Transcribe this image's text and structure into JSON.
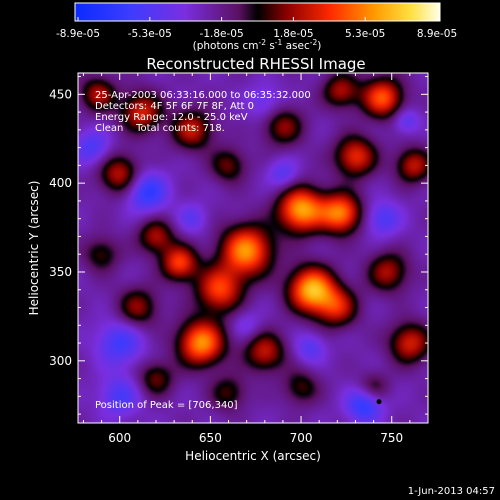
{
  "chart_data": {
    "type": "heatmap",
    "title": "Reconstructed RHESSI Image",
    "xlabel": "Heliocentric X (arcsec)",
    "ylabel": "Heliocentric Y (arcsec)",
    "xlim": [
      577,
      770
    ],
    "ylim": [
      265,
      462
    ],
    "x_ticks": [
      600,
      650,
      700,
      750
    ],
    "y_ticks": [
      300,
      350,
      400,
      450
    ],
    "colorbar": {
      "ticks": [
        "-8.9e-05",
        "-5.3e-05",
        "-1.8e-05",
        "1.8e-05",
        "5.3e-05",
        "8.9e-05"
      ],
      "range": [
        -8.9e-05,
        8.9e-05
      ],
      "unit_label": "(photons cm",
      "unit_exp1": "-2",
      "unit_mid": " s",
      "unit_exp2": "-1",
      "unit_mid2": " asec",
      "unit_exp3": "-2",
      "unit_end": ")"
    },
    "annotations": [
      "25-Apr-2003 06:33:16.000 to 06:35:32.000",
      "Detectors: 4F 5F 6F 7F 8F, Att 0",
      "Energy Range: 12.0 - 25.0 keV",
      "Clean    Total counts: 718."
    ],
    "peak_text": "Position of Peak = [706,340]",
    "peak": [
      706,
      340
    ],
    "date_stamp": "1-Jun-2013 04:57",
    "blobs": [
      {
        "x": 706,
        "y": 340,
        "amp": 1.0,
        "s": 9
      },
      {
        "x": 700,
        "y": 385,
        "amp": 0.95,
        "s": 9
      },
      {
        "x": 722,
        "y": 383,
        "amp": 0.85,
        "s": 8
      },
      {
        "x": 670,
        "y": 362,
        "amp": 0.9,
        "s": 10
      },
      {
        "x": 645,
        "y": 310,
        "amp": 0.9,
        "s": 9
      },
      {
        "x": 720,
        "y": 330,
        "amp": 0.55,
        "s": 8
      },
      {
        "x": 655,
        "y": 340,
        "amp": 0.7,
        "s": 9
      },
      {
        "x": 680,
        "y": 305,
        "amp": 0.55,
        "s": 8
      },
      {
        "x": 633,
        "y": 355,
        "amp": 0.7,
        "s": 7
      },
      {
        "x": 610,
        "y": 330,
        "amp": 0.45,
        "s": 8
      },
      {
        "x": 760,
        "y": 310,
        "amp": 0.6,
        "s": 8
      },
      {
        "x": 748,
        "y": 350,
        "amp": 0.5,
        "s": 8
      },
      {
        "x": 730,
        "y": 415,
        "amp": 0.65,
        "s": 8
      },
      {
        "x": 762,
        "y": 410,
        "amp": 0.55,
        "s": 7
      },
      {
        "x": 745,
        "y": 448,
        "amp": 0.75,
        "s": 8
      },
      {
        "x": 722,
        "y": 452,
        "amp": 0.5,
        "s": 7
      },
      {
        "x": 690,
        "y": 432,
        "amp": 0.45,
        "s": 8
      },
      {
        "x": 640,
        "y": 430,
        "amp": 0.55,
        "s": 8
      },
      {
        "x": 612,
        "y": 440,
        "amp": 0.6,
        "s": 8
      },
      {
        "x": 588,
        "y": 450,
        "amp": 0.5,
        "s": 7
      },
      {
        "x": 600,
        "y": 405,
        "amp": 0.55,
        "s": 8
      },
      {
        "x": 620,
        "y": 370,
        "amp": 0.5,
        "s": 7
      },
      {
        "x": 590,
        "y": 360,
        "amp": 0.35,
        "s": 7
      },
      {
        "x": 620,
        "y": 290,
        "amp": 0.4,
        "s": 7
      },
      {
        "x": 700,
        "y": 285,
        "amp": 0.35,
        "s": 7
      },
      {
        "x": 660,
        "y": 282,
        "amp": 0.35,
        "s": 7
      },
      {
        "x": 740,
        "y": 285,
        "amp": 0.3,
        "s": 6
      },
      {
        "x": 660,
        "y": 410,
        "amp": 0.4,
        "s": 7
      },
      {
        "x": 615,
        "y": 395,
        "amp": -0.5,
        "s": 8
      },
      {
        "x": 600,
        "y": 310,
        "amp": -0.4,
        "s": 9
      },
      {
        "x": 600,
        "y": 280,
        "amp": -0.35,
        "s": 8
      },
      {
        "x": 690,
        "y": 405,
        "amp": -0.3,
        "s": 6
      },
      {
        "x": 745,
        "y": 380,
        "amp": -0.35,
        "s": 7
      },
      {
        "x": 735,
        "y": 275,
        "amp": -0.5,
        "s": 7
      },
      {
        "x": 705,
        "y": 307,
        "amp": -0.3,
        "s": 6
      },
      {
        "x": 680,
        "y": 445,
        "amp": -0.25,
        "s": 7
      },
      {
        "x": 758,
        "y": 435,
        "amp": -0.3,
        "s": 5
      },
      {
        "x": 640,
        "y": 380,
        "amp": -0.25,
        "s": 6
      },
      {
        "x": 585,
        "y": 420,
        "amp": -0.35,
        "s": 7
      },
      {
        "x": 670,
        "y": 320,
        "amp": -0.2,
        "s": 6
      }
    ]
  }
}
